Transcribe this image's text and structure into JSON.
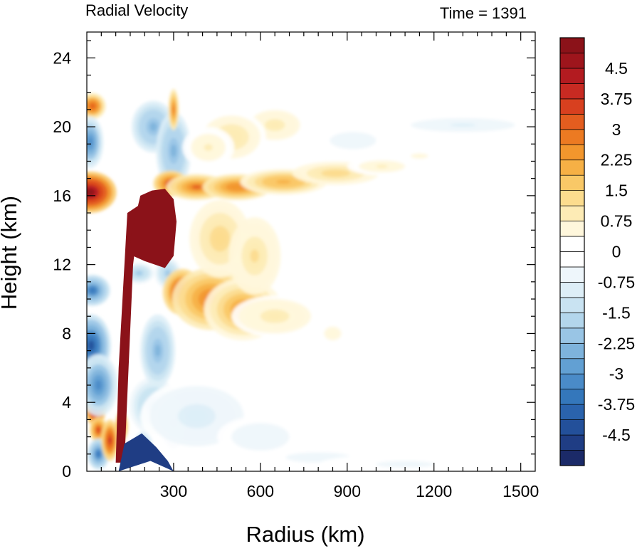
{
  "chart_data": {
    "type": "heatmap",
    "title_left": "Radial Velocity",
    "title_right": "Time = 1391",
    "xlabel": "Radius (km)",
    "ylabel": "Height (km)",
    "xlim": [
      0,
      1550
    ],
    "ylim": [
      0,
      25.5
    ],
    "x_ticks": [
      {
        "value": 300,
        "label": "300"
      },
      {
        "value": 600,
        "label": "600"
      },
      {
        "value": 900,
        "label": "900"
      },
      {
        "value": 1200,
        "label": "1200"
      },
      {
        "value": 1500,
        "label": "1500"
      }
    ],
    "y_ticks": [
      {
        "value": 0,
        "label": "0"
      },
      {
        "value": 4,
        "label": "4"
      },
      {
        "value": 8,
        "label": "8"
      },
      {
        "value": 12,
        "label": "12"
      },
      {
        "value": 16,
        "label": "16"
      },
      {
        "value": 20,
        "label": "20"
      },
      {
        "value": 24,
        "label": "24"
      }
    ],
    "colorbar": {
      "levels": [
        -4.875,
        -4.5,
        -4.125,
        -3.75,
        -3.375,
        -3,
        -2.625,
        -2.25,
        -1.875,
        -1.5,
        -1.125,
        -0.75,
        -0.375,
        0,
        0.375,
        0.75,
        1.125,
        1.5,
        1.875,
        2.25,
        2.625,
        3,
        3.375,
        3.75,
        4.125,
        4.5,
        4.875
      ],
      "colors": [
        "#1b2a68",
        "#1f3d84",
        "#23509a",
        "#2a63ad",
        "#3477bb",
        "#4a8bc8",
        "#62a0d3",
        "#7eb3dc",
        "#99c5e5",
        "#b3d6ec",
        "#c9e3f2",
        "#ddeef7",
        "#eef6fb",
        "#ffffff",
        "#ffffff",
        "#fff7dc",
        "#fdebb5",
        "#fcdc8e",
        "#f9c867",
        "#f6b045",
        "#f2962d",
        "#ec7a22",
        "#e35d1f",
        "#d8401f",
        "#c82a22",
        "#b31b20",
        "#9e151c",
        "#8b1219"
      ],
      "tick_labels": [
        {
          "value": 4.5,
          "label": "4.5"
        },
        {
          "value": 3.75,
          "label": "3.75"
        },
        {
          "value": 3,
          "label": "3"
        },
        {
          "value": 2.25,
          "label": "2.25"
        },
        {
          "value": 1.5,
          "label": "1.5"
        },
        {
          "value": 0.75,
          "label": "0.75"
        },
        {
          "value": 0,
          "label": "0"
        },
        {
          "value": -0.75,
          "label": "-0.75"
        },
        {
          "value": -1.5,
          "label": "-1.5"
        },
        {
          "value": -2.25,
          "label": "-2.25"
        },
        {
          "value": -3,
          "label": "-3"
        },
        {
          "value": -3.75,
          "label": "-3.75"
        },
        {
          "value": -4.5,
          "label": "-4.5"
        }
      ]
    },
    "features": [
      {
        "name": "eyewall-updraft-column",
        "v": 5.0,
        "polygon": [
          [
            100,
            0.5
          ],
          [
            130,
            0.5
          ],
          [
            160,
            12
          ],
          [
            185,
            15.5
          ],
          [
            140,
            15
          ],
          [
            110,
            6
          ]
        ]
      },
      {
        "name": "upper-outflow-core",
        "v": 5.0,
        "polygon": [
          [
            150,
            13.5
          ],
          [
            185,
            16
          ],
          [
            225,
            16.3
          ],
          [
            270,
            16.4
          ],
          [
            300,
            15.8
          ],
          [
            310,
            14.5
          ],
          [
            300,
            12.5
          ],
          [
            270,
            11.8
          ],
          [
            200,
            12.2
          ],
          [
            160,
            12.5
          ]
        ]
      },
      {
        "name": "low-level-inflow-core",
        "v": -4.8,
        "polygon": [
          [
            110,
            0
          ],
          [
            130,
            1.6
          ],
          [
            190,
            2.2
          ],
          [
            240,
            1.4
          ],
          [
            280,
            0.6
          ],
          [
            300,
            0
          ],
          [
            220,
            0.6
          ]
        ]
      }
    ],
    "blobs": [
      {
        "r": 12,
        "z": 16.2,
        "sr": 60,
        "sz": 0.8,
        "v": 5.0
      },
      {
        "r": 20,
        "z": 21.2,
        "sr": 30,
        "sz": 0.5,
        "v": 3.2
      },
      {
        "r": 12,
        "z": 19.1,
        "sr": 30,
        "sz": 1.0,
        "v": -3.2
      },
      {
        "r": 20,
        "z": 10.5,
        "sr": 40,
        "sz": 0.6,
        "v": -3.5
      },
      {
        "r": 15,
        "z": 7.3,
        "sr": 45,
        "sz": 1.2,
        "v": -4.3
      },
      {
        "r": 30,
        "z": 3.8,
        "sr": 25,
        "sz": 0.8,
        "v": 5.0
      },
      {
        "r": 40,
        "z": 2.4,
        "sr": 20,
        "sz": 0.5,
        "v": 3.5
      },
      {
        "r": 40,
        "z": 5.0,
        "sr": 45,
        "sz": 1.2,
        "v": -3.2
      },
      {
        "r": 40,
        "z": 1.0,
        "sr": 25,
        "sz": 0.6,
        "v": -3.5
      },
      {
        "r": 80,
        "z": 1.8,
        "sr": 20,
        "sz": 0.8,
        "v": 3.8
      },
      {
        "r": 120,
        "z": 2.6,
        "sr": 15,
        "sz": 0.6,
        "v": 3.5
      },
      {
        "r": 195,
        "z": 1.4,
        "sr": 22,
        "sz": 0.6,
        "v": -2.3
      },
      {
        "r": 230,
        "z": 3.8,
        "sr": 55,
        "sz": 1.1,
        "v": -2.0
      },
      {
        "r": 300,
        "z": 2.8,
        "sr": 30,
        "sz": 1.0,
        "v": -2.8
      },
      {
        "r": 245,
        "z": 7.0,
        "sr": 40,
        "sz": 1.4,
        "v": -2.5
      },
      {
        "r": 180,
        "z": 11.5,
        "sr": 35,
        "sz": 0.4,
        "v": -2.0
      },
      {
        "r": 280,
        "z": 11.5,
        "sr": 30,
        "sz": 0.6,
        "v": -2.0
      },
      {
        "r": 230,
        "z": 20.0,
        "sr": 50,
        "sz": 1.0,
        "v": -2.5
      },
      {
        "r": 300,
        "z": 18.6,
        "sr": 40,
        "sz": 1.5,
        "v": -2.5
      },
      {
        "r": 300,
        "z": 21.0,
        "sr": 12,
        "sz": 0.8,
        "v": 2.8
      },
      {
        "r": 290,
        "z": 16.7,
        "sr": 40,
        "sz": 0.5,
        "v": 3.5
      },
      {
        "r": 380,
        "z": 16.5,
        "sr": 70,
        "sz": 0.5,
        "v": 3.0
      },
      {
        "r": 520,
        "z": 16.5,
        "sr": 80,
        "sz": 0.5,
        "v": 2.6
      },
      {
        "r": 680,
        "z": 16.8,
        "sr": 100,
        "sz": 0.5,
        "v": 2.1
      },
      {
        "r": 860,
        "z": 17.3,
        "sr": 100,
        "sz": 0.45,
        "v": 1.3
      },
      {
        "r": 1020,
        "z": 17.7,
        "sr": 80,
        "sz": 0.35,
        "v": 0.8
      },
      {
        "r": 1150,
        "z": 18.3,
        "sr": 60,
        "sz": 0.3,
        "v": 0.5
      },
      {
        "r": 330,
        "z": 10.4,
        "sr": 45,
        "sz": 0.9,
        "v": 4.0
      },
      {
        "r": 430,
        "z": 10.0,
        "sr": 90,
        "sz": 1.2,
        "v": 2.8
      },
      {
        "r": 540,
        "z": 9.4,
        "sr": 90,
        "sz": 1.2,
        "v": 2.2
      },
      {
        "r": 460,
        "z": 13.5,
        "sr": 70,
        "sz": 1.5,
        "v": 1.3
      },
      {
        "r": 580,
        "z": 12.5,
        "sr": 60,
        "sz": 1.5,
        "v": 1.2
      },
      {
        "r": 650,
        "z": 9.0,
        "sr": 100,
        "sz": 0.8,
        "v": 0.9
      },
      {
        "r": 850,
        "z": 8.0,
        "sr": 60,
        "sz": 0.8,
        "v": 0.5
      },
      {
        "r": 650,
        "z": 20.1,
        "sr": 70,
        "sz": 0.7,
        "v": 1.0
      },
      {
        "r": 500,
        "z": 19.4,
        "sr": 80,
        "sz": 1.0,
        "v": 1.1
      },
      {
        "r": 420,
        "z": 18.8,
        "sr": 60,
        "sz": 0.8,
        "v": 0.8
      },
      {
        "r": 920,
        "z": 19.2,
        "sr": 80,
        "sz": 0.5,
        "v": -0.7
      },
      {
        "r": 1300,
        "z": 20.1,
        "sr": 180,
        "sz": 0.4,
        "v": -0.8
      },
      {
        "r": 380,
        "z": 3.2,
        "sr": 130,
        "sz": 1.4,
        "v": -1.0
      },
      {
        "r": 600,
        "z": 2.0,
        "sr": 100,
        "sz": 0.8,
        "v": -0.7
      },
      {
        "r": 800,
        "z": 0.8,
        "sr": 150,
        "sz": 0.4,
        "v": -0.6
      },
      {
        "r": 1100,
        "z": 0.4,
        "sr": 200,
        "sz": 0.4,
        "v": -0.5
      }
    ]
  }
}
